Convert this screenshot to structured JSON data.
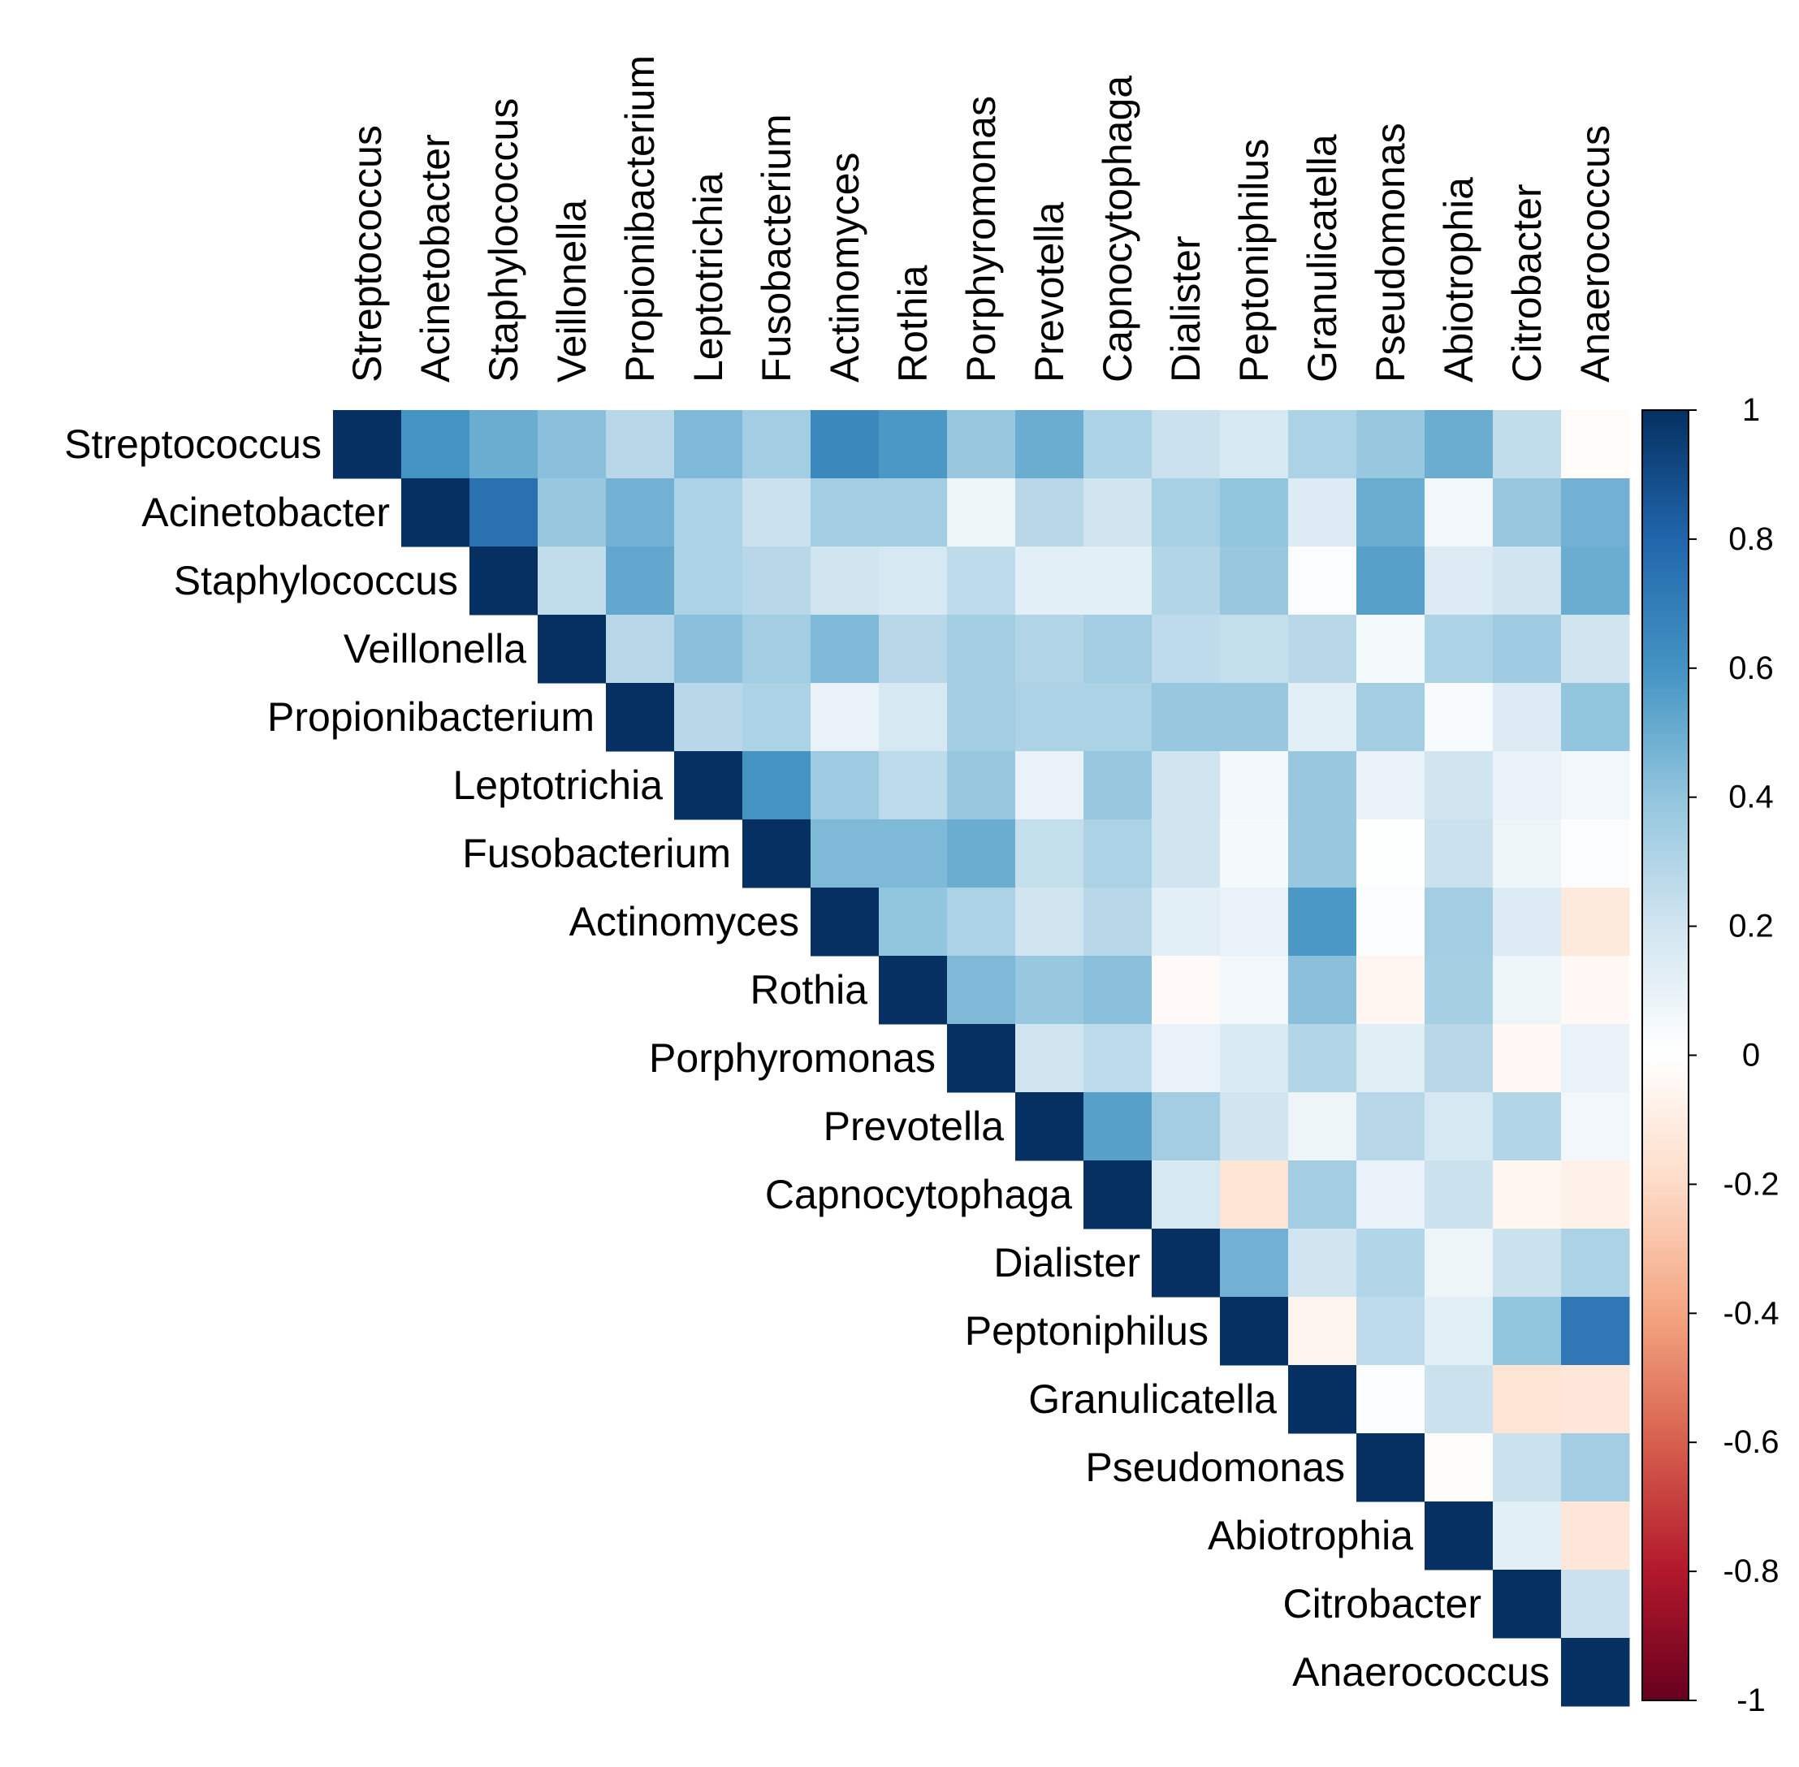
{
  "chart_data": {
    "type": "heatmap",
    "title": "",
    "shape": "upper-triangle",
    "categories": [
      "Streptococcus",
      "Acinetobacter",
      "Staphylococcus",
      "Veillonella",
      "Propionibacterium",
      "Leptotrichia",
      "Fusobacterium",
      "Actinomyces",
      "Rothia",
      "Porphyromonas",
      "Prevotella",
      "Capnocytophaga",
      "Dialister",
      "Peptoniphilus",
      "Granulicatella",
      "Pseudomonas",
      "Abiotrophia",
      "Citrobacter",
      "Anaerococcus"
    ],
    "matrix": [
      [
        1.0,
        0.6,
        0.5,
        0.42,
        0.28,
        0.45,
        0.35,
        0.65,
        0.58,
        0.38,
        0.5,
        0.32,
        0.22,
        0.18,
        0.32,
        0.38,
        0.5,
        0.25,
        -0.02
      ],
      [
        null,
        1.0,
        0.75,
        0.38,
        0.48,
        0.32,
        0.22,
        0.35,
        0.35,
        0.08,
        0.28,
        0.2,
        0.33,
        0.4,
        0.15,
        0.5,
        0.06,
        0.38,
        0.48
      ],
      [
        null,
        null,
        1.0,
        0.25,
        0.52,
        0.32,
        0.28,
        0.2,
        0.18,
        0.26,
        0.12,
        0.12,
        0.3,
        0.38,
        0.02,
        0.55,
        0.15,
        0.2,
        0.5
      ],
      [
        null,
        null,
        null,
        1.0,
        0.28,
        0.42,
        0.35,
        0.45,
        0.28,
        0.35,
        0.3,
        0.35,
        0.26,
        0.24,
        0.28,
        0.05,
        0.32,
        0.36,
        0.2
      ],
      [
        null,
        null,
        null,
        null,
        1.0,
        0.28,
        0.32,
        0.1,
        0.18,
        0.35,
        0.32,
        0.32,
        0.38,
        0.38,
        0.12,
        0.35,
        0.03,
        0.15,
        0.4
      ],
      [
        null,
        null,
        null,
        null,
        null,
        1.0,
        0.6,
        0.36,
        0.26,
        0.38,
        0.1,
        0.38,
        0.2,
        0.06,
        0.38,
        0.1,
        0.2,
        0.1,
        0.06
      ],
      [
        null,
        null,
        null,
        null,
        null,
        null,
        1.0,
        0.45,
        0.45,
        0.5,
        0.24,
        0.32,
        0.2,
        0.05,
        0.38,
        0.01,
        0.22,
        0.08,
        0.02
      ],
      [
        null,
        null,
        null,
        null,
        null,
        null,
        null,
        1.0,
        0.4,
        0.32,
        0.2,
        0.28,
        0.12,
        0.1,
        0.58,
        0.02,
        0.35,
        0.15,
        -0.12
      ],
      [
        null,
        null,
        null,
        null,
        null,
        null,
        null,
        null,
        1.0,
        0.45,
        0.38,
        0.42,
        -0.03,
        0.06,
        0.42,
        -0.05,
        0.34,
        0.08,
        -0.04
      ],
      [
        null,
        null,
        null,
        null,
        null,
        null,
        null,
        null,
        null,
        1.0,
        0.2,
        0.26,
        0.1,
        0.16,
        0.3,
        0.14,
        0.28,
        -0.04,
        0.1
      ],
      [
        null,
        null,
        null,
        null,
        null,
        null,
        null,
        null,
        null,
        null,
        1.0,
        0.55,
        0.35,
        0.2,
        0.08,
        0.28,
        0.18,
        0.3,
        0.06
      ],
      [
        null,
        null,
        null,
        null,
        null,
        null,
        null,
        null,
        null,
        null,
        null,
        1.0,
        0.18,
        -0.15,
        0.35,
        0.1,
        0.22,
        -0.05,
        -0.08
      ],
      [
        null,
        null,
        null,
        null,
        null,
        null,
        null,
        null,
        null,
        null,
        null,
        null,
        1.0,
        0.48,
        0.2,
        0.3,
        0.08,
        0.22,
        0.32
      ],
      [
        null,
        null,
        null,
        null,
        null,
        null,
        null,
        null,
        null,
        null,
        null,
        null,
        null,
        1.0,
        -0.06,
        0.26,
        0.12,
        0.4,
        0.72
      ],
      [
        null,
        null,
        null,
        null,
        null,
        null,
        null,
        null,
        null,
        null,
        null,
        null,
        null,
        null,
        1.0,
        0.02,
        0.22,
        -0.15,
        -0.14
      ],
      [
        null,
        null,
        null,
        null,
        null,
        null,
        null,
        null,
        null,
        null,
        null,
        null,
        null,
        null,
        null,
        1.0,
        -0.01,
        0.22,
        0.35
      ],
      [
        null,
        null,
        null,
        null,
        null,
        null,
        null,
        null,
        null,
        null,
        null,
        null,
        null,
        null,
        null,
        null,
        1.0,
        0.12,
        -0.14
      ],
      [
        null,
        null,
        null,
        null,
        null,
        null,
        null,
        null,
        null,
        null,
        null,
        null,
        null,
        null,
        null,
        null,
        null,
        1.0,
        0.22
      ],
      [
        null,
        null,
        null,
        null,
        null,
        null,
        null,
        null,
        null,
        null,
        null,
        null,
        null,
        null,
        null,
        null,
        null,
        null,
        1.0
      ]
    ],
    "colorbar": {
      "range": [
        -1,
        1
      ],
      "ticks": [
        1,
        0.8,
        0.6,
        0.4,
        0.2,
        0,
        -0.2,
        -0.4,
        -0.6,
        -0.8,
        -1
      ],
      "tick_labels": [
        "1",
        "0.8",
        "0.6",
        "0.4",
        "0.2",
        "0",
        "-0.2",
        "-0.4",
        "-0.6",
        "-0.8",
        "-1"
      ],
      "colors": [
        "#67001F",
        "#B2182B",
        "#D6604D",
        "#F4A582",
        "#FDDBC7",
        "#FFFFFF",
        "#D1E5F0",
        "#92C5DE",
        "#4393C3",
        "#2166AC",
        "#053061"
      ]
    }
  }
}
